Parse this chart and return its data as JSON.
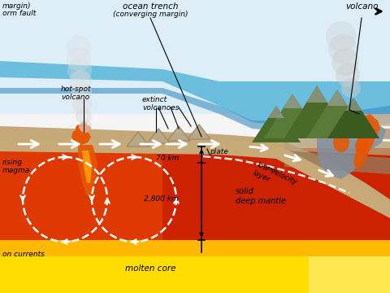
{
  "white_bg": "#f5f5f5",
  "sky_color": "#ddeef8",
  "ocean_color_top": "#6bbedd",
  "ocean_color_bot": "#3a8fc0",
  "seafloor_color": "#c4a87a",
  "plate_color": "#c8aa78",
  "plate_edge": "#b09060",
  "mantle_top": "#cc2200",
  "mantle_bot": "#dd4400",
  "mantle_glow": "#ff6600",
  "core_color": "#ffdd00",
  "core_orange": "#ffaa00",
  "orange_magma": "#e85500",
  "gray_rock": "#7a7a8a",
  "blue_gray_rock": "#8090a0",
  "green_mountain": "#5a7a3a",
  "dark_green": "#3a5a20",
  "rock_tan": "#b8a888",
  "arrow_white": "#ffffff",
  "text_color": "#111111",
  "labels": {
    "top_left_1": "margin)",
    "top_left_2": "orm fault",
    "ocean_trench": "ocean trench",
    "converging": "(converging margin)",
    "hot_spot": "hot-spot\nvolcano",
    "extinct": "extinct\nvolcanoes",
    "volcano_right": "volcano",
    "rising_magma": "rising\nmagma",
    "low_velocity": "low-velocity\nlayer",
    "plate": "plate",
    "km70": "70 km",
    "km2800": "2,800 km",
    "solid_mantle": "solid\ndeep mantle",
    "convection": "on currents",
    "molten_core": "molten core"
  }
}
